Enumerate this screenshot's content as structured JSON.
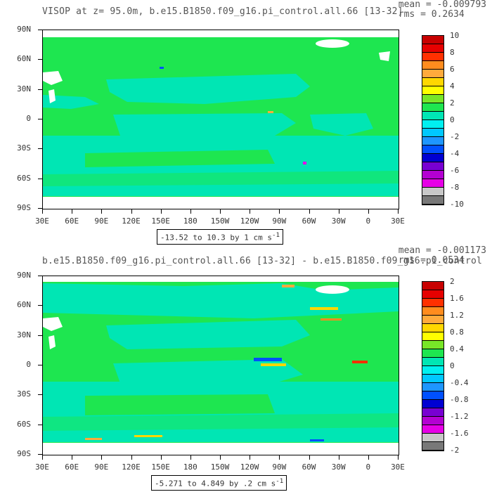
{
  "top": {
    "title": "VISOP at z=  95.0m, b.e15.B1850.f09_g16.pi_control.all.66 [13-32]",
    "mean": "mean = -0.009793",
    "rms": "rms = 0.2634",
    "ci_text": "-13.52 to 10.3 by 1 cm s",
    "ci_sup": "-1",
    "legend_labels": [
      "10",
      "8",
      "6",
      "4",
      "2",
      "0",
      "-2",
      "-4",
      "-6",
      "-8",
      "-10"
    ],
    "legend_colors": [
      "#c80000",
      "#e60000",
      "#ff3000",
      "#ff8c1e",
      "#ffaa3c",
      "#ffd700",
      "#ffff00",
      "#78e628",
      "#1ee650",
      "#00e6b4",
      "#00f0f0",
      "#00c8ff",
      "#1e96ff",
      "#0050ff",
      "#0000d2",
      "#7800d2",
      "#b400d2",
      "#e600e6",
      "#c8c8c8",
      "#787878"
    ]
  },
  "bottom": {
    "title": "b.e15.B1850.f09_g16.pi_control.all.66 [13-32] - b.e15.B1850.f09_g16.pi_control",
    "mean": "mean = -0.001173",
    "rms": "rms = 0.0534",
    "ci_text": "-5.271 to 4.849 by .2 cm s",
    "ci_sup": "-1",
    "legend_labels": [
      "2",
      "1.6",
      "1.2",
      "0.8",
      "0.4",
      "0",
      "-0.4",
      "-0.8",
      "-1.2",
      "-1.6",
      "-2"
    ],
    "legend_colors": [
      "#c80000",
      "#e60000",
      "#ff3000",
      "#ff8c1e",
      "#ffaa3c",
      "#ffd700",
      "#ffff00",
      "#78e628",
      "#1ee650",
      "#00e6b4",
      "#00f0f0",
      "#00c8ff",
      "#1e96ff",
      "#0050ff",
      "#0000d2",
      "#7800d2",
      "#b400d2",
      "#e600e6",
      "#c8c8c8",
      "#787878"
    ]
  },
  "axes": {
    "lat_labels": [
      "90N",
      "60N",
      "30N",
      "0",
      "30S",
      "60S",
      "90S"
    ],
    "lon_labels": [
      "30E",
      "60E",
      "90E",
      "120E",
      "150E",
      "180",
      "150W",
      "120W",
      "90W",
      "60W",
      "30W",
      "0",
      "30E"
    ]
  },
  "colors": {
    "ocean_green": "#1ee650",
    "ocean_cyan": "#00e6b4",
    "land": "#ffffff"
  }
}
